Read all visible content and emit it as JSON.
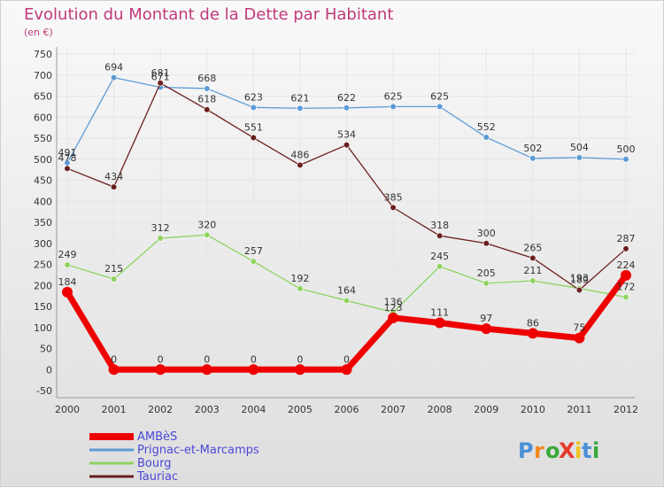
{
  "chart_data": {
    "type": "line",
    "title": "Evolution du Montant de la Dette par Habitant",
    "subtitle": "(en €)",
    "xlabel": "",
    "ylabel": "",
    "ylim": [
      -50,
      750
    ],
    "yticks": [
      -50,
      0,
      50,
      100,
      150,
      200,
      250,
      300,
      350,
      400,
      450,
      500,
      550,
      600,
      650,
      700,
      750
    ],
    "grid": true,
    "legend": "bottom-left",
    "categories": [
      "2000",
      "2001",
      "2002",
      "2003",
      "2004",
      "2005",
      "2006",
      "2007",
      "2008",
      "2009",
      "2010",
      "2011",
      "2012"
    ],
    "series": [
      {
        "name": "AMBèS",
        "color": "#ee0000",
        "values": [
          184,
          0,
          0,
          0,
          0,
          0,
          0,
          123,
          111,
          97,
          86,
          75,
          224
        ]
      },
      {
        "name": "Prignac-et-Marcamps",
        "color": "#5b9bd5",
        "values": [
          491,
          694,
          671,
          668,
          623,
          621,
          622,
          625,
          625,
          552,
          502,
          504,
          500
        ]
      },
      {
        "name": "Bourg",
        "color": "#8fd360",
        "values": [
          249,
          215,
          312,
          320,
          257,
          192,
          164,
          136,
          245,
          205,
          211,
          193,
          172
        ]
      },
      {
        "name": "Tauriac",
        "color": "#6b1f1f",
        "values": [
          478,
          434,
          681,
          618,
          551,
          486,
          534,
          385,
          318,
          300,
          265,
          189,
          287
        ]
      }
    ]
  },
  "logo": {
    "text": "ProXiti",
    "letters": [
      "P",
      "r",
      "o",
      "X",
      "i",
      "t",
      "i"
    ]
  }
}
